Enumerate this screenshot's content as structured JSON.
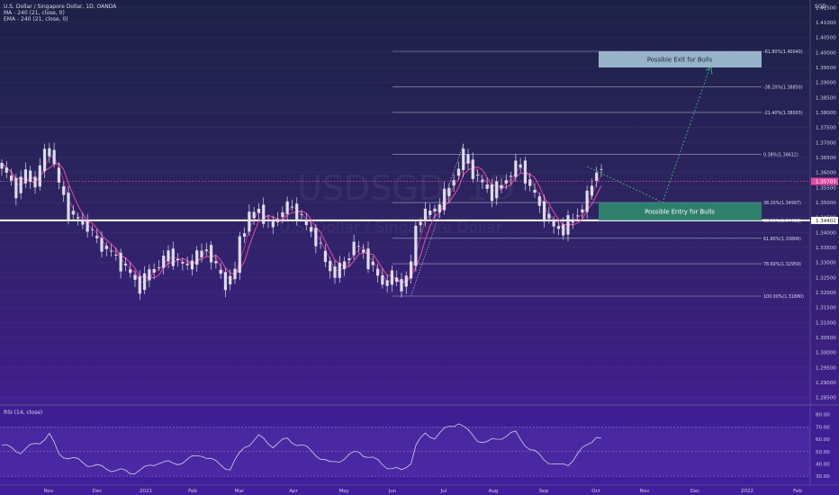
{
  "header": {
    "symbol_line": "U.S. Dollar / Singapore Dollar, 1D, OANDA",
    "ma_line": "MA - 240 (21, close, 0)",
    "ema_line": "EMA - 240 (21, close, 0)",
    "currency": "SGD",
    "watermark_symbol": "USDSGD, 1D",
    "watermark_name": "U.S. Dollar / Singapore Dollar",
    "rsi_label": "RSI (14, close)"
  },
  "colors": {
    "candle": "#dcdcec",
    "ma": "#ff4aa8",
    "ema": "#ff4aa8",
    "fib": "#c8c8d8",
    "support": "#ffffff",
    "entry_box": "#2f8a6e",
    "exit_box": "#a4c3d6",
    "arrow": "#3fa878",
    "rsi": "#d2d2e0"
  },
  "chart_data": {
    "type": "candlestick",
    "symbol": "USDSGD",
    "timeframe": "1D",
    "ylim": [
      1.2825,
      1.4175
    ],
    "y_ticks": [
      "1.41500",
      "1.41000",
      "1.40500",
      "1.40000",
      "1.39500",
      "1.39000",
      "1.38500",
      "1.38000",
      "1.37500",
      "1.37000",
      "1.36500",
      "1.36000",
      "1.35500",
      "1.35000",
      "1.34500",
      "1.34000",
      "1.33500",
      "1.33000",
      "1.32500",
      "1.32000",
      "1.31500",
      "1.31000",
      "1.30500",
      "1.30000",
      "1.29500",
      "1.29000",
      "1.28500"
    ],
    "x_ticks": [
      "Nov",
      "Dec",
      "2021",
      "Feb",
      "Mar",
      "Apr",
      "May",
      "Jun",
      "Jul",
      "Aug",
      "Sep",
      "Oct",
      "Nov",
      "Dec",
      "2022",
      "Feb"
    ],
    "price_path": [
      [
        0,
        1.362
      ],
      [
        3,
        1.354
      ],
      [
        5,
        1.36
      ],
      [
        7,
        1.356
      ],
      [
        9,
        1.3665
      ],
      [
        10,
        1.368
      ],
      [
        12,
        1.356
      ],
      [
        14,
        1.347
      ],
      [
        16,
        1.344
      ],
      [
        18,
        1.342
      ],
      [
        20,
        1.337
      ],
      [
        23,
        1.333
      ],
      [
        25,
        1.33
      ],
      [
        27,
        1.326
      ],
      [
        29,
        1.322
      ],
      [
        31,
        1.327
      ],
      [
        33,
        1.329
      ],
      [
        35,
        1.333
      ],
      [
        37,
        1.33
      ],
      [
        39,
        1.329
      ],
      [
        41,
        1.332
      ],
      [
        43,
        1.335
      ],
      [
        45,
        1.328
      ],
      [
        47,
        1.323
      ],
      [
        49,
        1.327
      ],
      [
        50,
        1.338
      ],
      [
        52,
        1.345
      ],
      [
        54,
        1.348
      ],
      [
        56,
        1.342
      ],
      [
        58,
        1.345
      ],
      [
        60,
        1.349
      ],
      [
        62,
        1.347
      ],
      [
        64,
        1.342
      ],
      [
        66,
        1.338
      ],
      [
        68,
        1.33
      ],
      [
        70,
        1.326
      ],
      [
        72,
        1.33
      ],
      [
        74,
        1.336
      ],
      [
        76,
        1.333
      ],
      [
        78,
        1.328
      ],
      [
        80,
        1.323
      ],
      [
        82,
        1.325
      ],
      [
        84,
        1.322
      ],
      [
        86,
        1.329
      ],
      [
        87,
        1.342
      ],
      [
        88,
        1.345
      ],
      [
        90,
        1.347
      ],
      [
        92,
        1.349
      ],
      [
        94,
        1.355
      ],
      [
        96,
        1.362
      ],
      [
        97,
        1.366
      ],
      [
        99,
        1.36
      ],
      [
        101,
        1.356
      ],
      [
        103,
        1.353
      ],
      [
        105,
        1.356
      ],
      [
        107,
        1.36
      ],
      [
        109,
        1.363
      ],
      [
        110,
        1.358
      ],
      [
        112,
        1.352
      ],
      [
        114,
        1.346
      ],
      [
        116,
        1.342
      ],
      [
        118,
        1.341
      ],
      [
        120,
        1.345
      ],
      [
        122,
        1.348
      ],
      [
        124,
        1.356
      ],
      [
        125,
        1.362
      ],
      [
        126,
        1.3595
      ]
    ],
    "last_price": "1.35703",
    "support_level": "1.34402",
    "fibonacci": [
      {
        "label": "-61.80%(1.40040)",
        "value": 1.4004
      },
      {
        "label": "-38.20%(1.38850)",
        "value": 1.3885
      },
      {
        "label": "-21.40%(1.38003)",
        "value": 1.38003
      },
      {
        "label": "0.38%(1.36612)",
        "value": 1.36612
      },
      {
        "label": "38.20%(1.34997)",
        "value": 1.34997
      },
      {
        "label": "50.00%(1.34402)",
        "value": 1.34402
      },
      {
        "label": "61.80%(1.33806)",
        "value": 1.33806
      },
      {
        "label": "78.60%(1.32959)",
        "value": 1.32959
      },
      {
        "label": "100.00%(1.31880)",
        "value": 1.3188
      }
    ],
    "annotations": {
      "entry_text": "Possible Entry for Bulls",
      "exit_text": "Possible Exit for Bulls",
      "entry_range": [
        1.34402,
        1.35
      ],
      "exit_range": [
        1.395,
        1.4004
      ]
    },
    "rsi": {
      "ylim": [
        25,
        82
      ],
      "ticks": [
        "80.00",
        "70.00",
        "60.00",
        "50.00",
        "40.00",
        "30.00"
      ],
      "bands": [
        70,
        50,
        30
      ],
      "path": [
        [
          0,
          55
        ],
        [
          4,
          50
        ],
        [
          8,
          58
        ],
        [
          10,
          64
        ],
        [
          12,
          48
        ],
        [
          15,
          44
        ],
        [
          18,
          40
        ],
        [
          21,
          37
        ],
        [
          24,
          35
        ],
        [
          27,
          33
        ],
        [
          30,
          36
        ],
        [
          33,
          42
        ],
        [
          36,
          40
        ],
        [
          39,
          43
        ],
        [
          42,
          48
        ],
        [
          45,
          41
        ],
        [
          48,
          36
        ],
        [
          51,
          54
        ],
        [
          54,
          62
        ],
        [
          57,
          55
        ],
        [
          60,
          60
        ],
        [
          63,
          55
        ],
        [
          66,
          48
        ],
        [
          69,
          40
        ],
        [
          72,
          45
        ],
        [
          75,
          50
        ],
        [
          78,
          44
        ],
        [
          81,
          38
        ],
        [
          84,
          34
        ],
        [
          86,
          42
        ],
        [
          87,
          55
        ],
        [
          89,
          64
        ],
        [
          91,
          62
        ],
        [
          94,
          70
        ],
        [
          96,
          74
        ],
        [
          98,
          66
        ],
        [
          100,
          60
        ],
        [
          102,
          57
        ],
        [
          105,
          62
        ],
        [
          108,
          65
        ],
        [
          111,
          52
        ],
        [
          114,
          44
        ],
        [
          117,
          38
        ],
        [
          119,
          40
        ],
        [
          121,
          48
        ],
        [
          123,
          55
        ],
        [
          125,
          63
        ],
        [
          126,
          60
        ]
      ]
    }
  }
}
